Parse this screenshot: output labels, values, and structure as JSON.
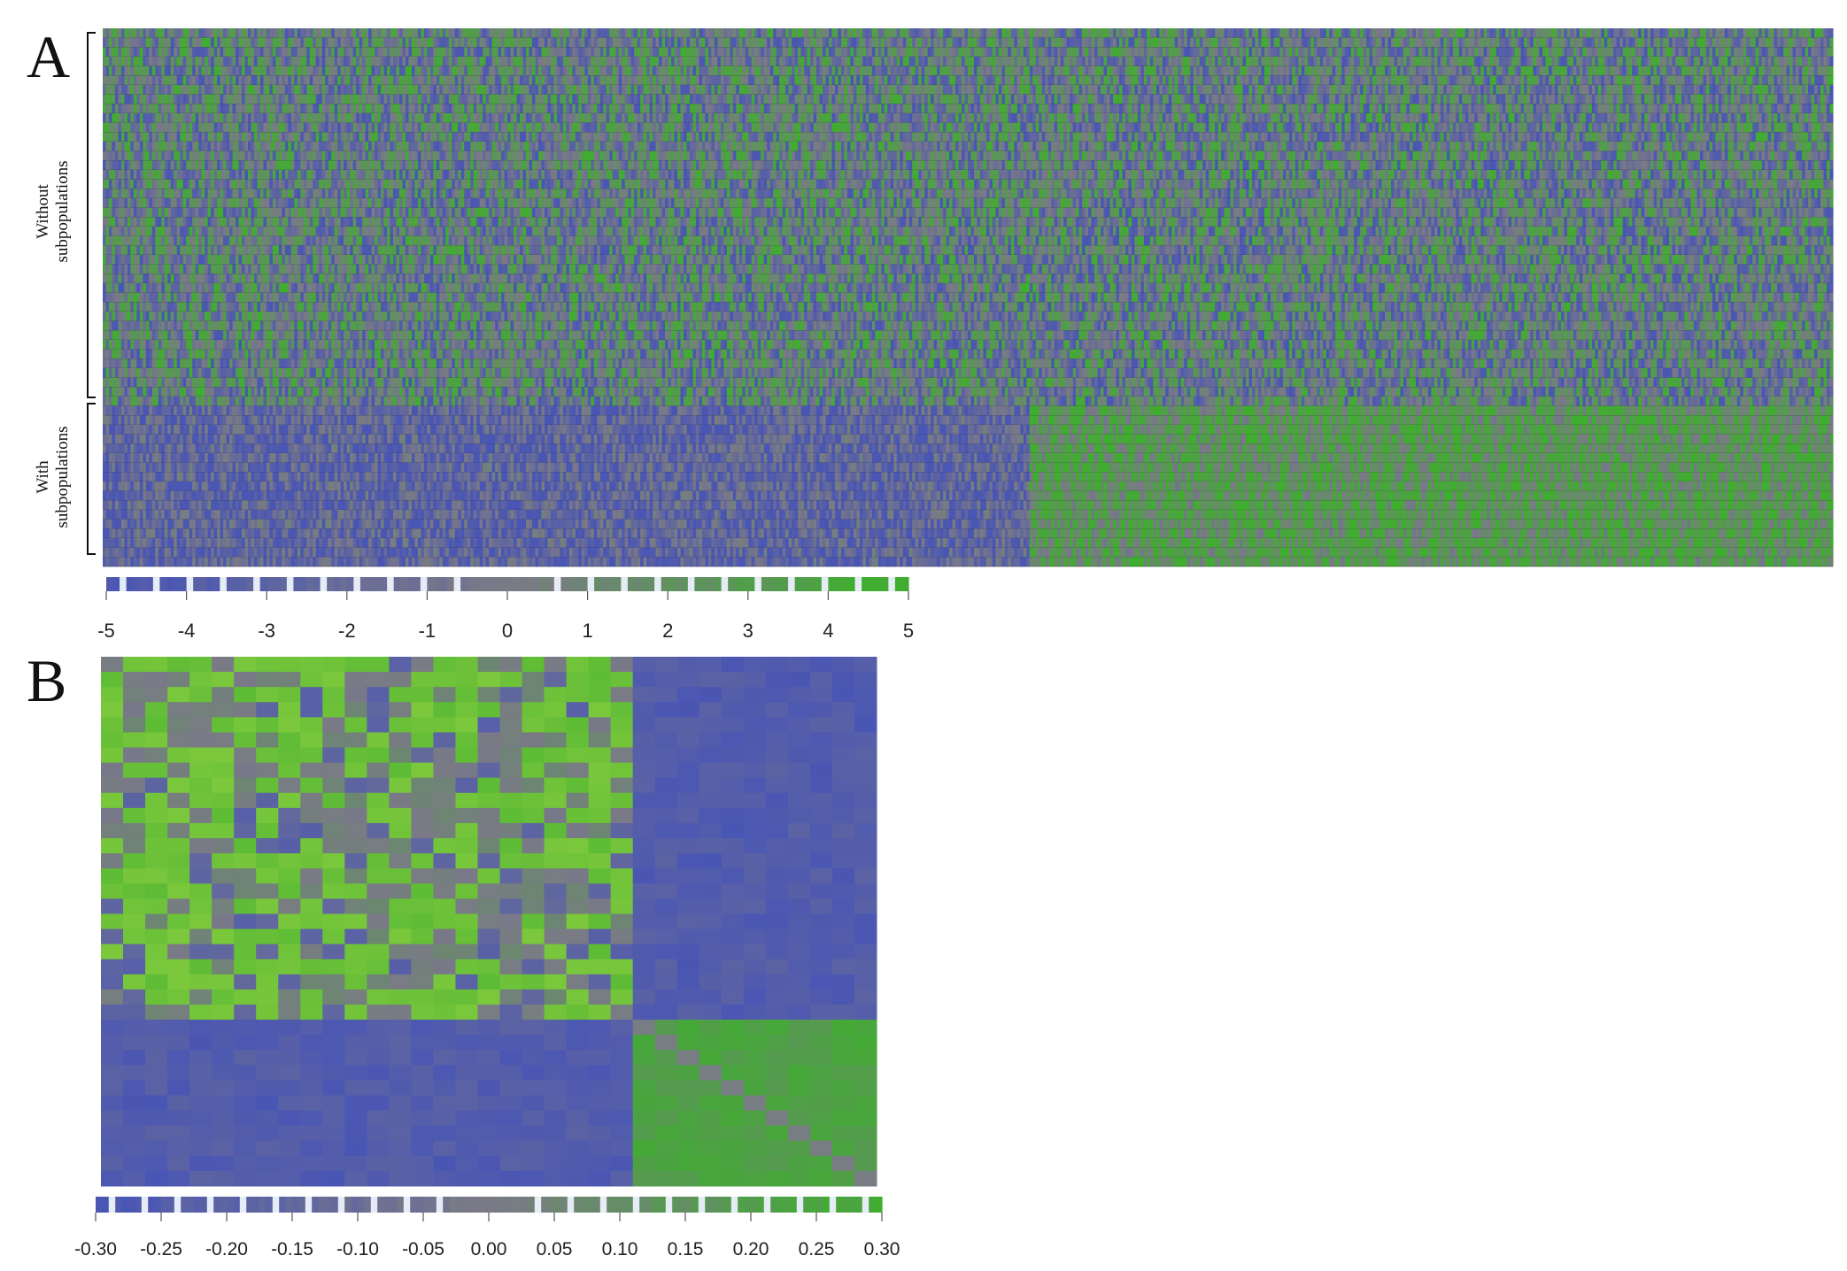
{
  "figure": {
    "panel_a_letter": "A",
    "panel_b_letter": "B",
    "group_label_without": [
      "Without",
      "subpopulations"
    ],
    "group_label_with": [
      "With",
      "subpopulations"
    ]
  },
  "colors": {
    "low": "#4a56b4",
    "mid": "#7a7a86",
    "high": "#3fae2e",
    "light_green": "#7cc83c",
    "row_separator": "#222222"
  },
  "chart_data": [
    {
      "panel": "A",
      "type": "heatmap",
      "title": "",
      "rows_without_subpopulations": 40,
      "rows_with_subpopulations": 17,
      "columns": 560,
      "block_structure": "rows with subpopulations are low (blue) in first ~53% of columns and high (green) in remaining columns; rows without subpopulations are mixed",
      "colorbar": {
        "min": -5,
        "max": 5,
        "ticks": [
          "-5",
          "-4",
          "-3",
          "-2",
          "-1",
          "0",
          "1",
          "2",
          "3",
          "4",
          "5"
        ]
      }
    },
    {
      "panel": "B",
      "type": "heatmap",
      "title": "",
      "size": 35,
      "blocks": [
        {
          "rows": [
            0,
            24
          ],
          "cols": [
            0,
            24
          ],
          "level": "high, mixed"
        },
        {
          "rows": [
            24,
            35
          ],
          "cols": [
            24,
            35
          ],
          "level": "high"
        },
        {
          "rows": [
            0,
            24
          ],
          "cols": [
            24,
            35
          ],
          "level": "low"
        },
        {
          "rows": [
            24,
            35
          ],
          "cols": [
            0,
            24
          ],
          "level": "low"
        }
      ],
      "diagonal": "mid (gray)",
      "colorbar": {
        "min": -0.3,
        "max": 0.3,
        "ticks": [
          "-0.30",
          "-0.25",
          "-0.20",
          "-0.15",
          "-0.10",
          "-0.05",
          "0.00",
          "0.05",
          "0.10",
          "0.15",
          "0.20",
          "0.25",
          "0.30"
        ]
      }
    }
  ]
}
